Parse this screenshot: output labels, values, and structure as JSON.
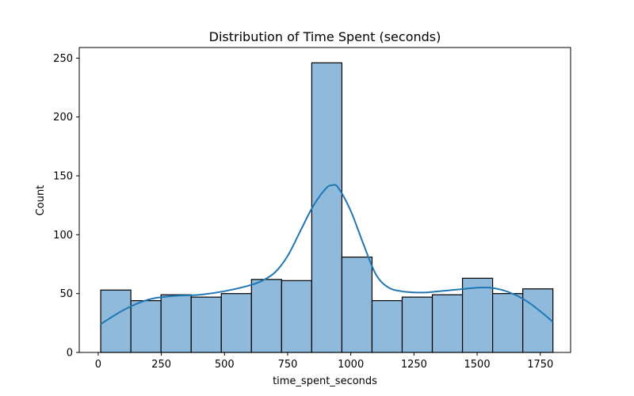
{
  "chart_data": {
    "type": "histogram",
    "title": "Distribution of Time Spent (seconds)",
    "xlabel": "time_spent_seconds",
    "ylabel": "Count",
    "xlim": [
      -75,
      1870
    ],
    "ylim": [
      0,
      259
    ],
    "x_ticks": [
      0,
      250,
      500,
      750,
      1000,
      1250,
      1500,
      1750
    ],
    "y_ticks": [
      0,
      50,
      100,
      150,
      200,
      250
    ],
    "bin_edges": [
      10,
      129.33,
      248.67,
      368,
      487.33,
      606.67,
      726,
      845.33,
      964.67,
      1084,
      1203.33,
      1322.67,
      1442,
      1561.33,
      1680.67,
      1800
    ],
    "counts": [
      53,
      44,
      49,
      47,
      50,
      62,
      61,
      246,
      81,
      44,
      47,
      49,
      63,
      50,
      54
    ],
    "kde": {
      "x": [
        10,
        100,
        200,
        300,
        400,
        500,
        600,
        650,
        700,
        750,
        800,
        850,
        900,
        925,
        950,
        1000,
        1050,
        1100,
        1150,
        1200,
        1250,
        1300,
        1350,
        1400,
        1450,
        1500,
        1550,
        1600,
        1650,
        1700,
        1750,
        1800
      ],
      "y": [
        24,
        36,
        45,
        48,
        49,
        52,
        57,
        61,
        68,
        82,
        103,
        124,
        139,
        142,
        140,
        120,
        92,
        66,
        55,
        52,
        51,
        51,
        52,
        53,
        54,
        55,
        55,
        53,
        49,
        43,
        35,
        26
      ]
    },
    "colors": {
      "bar_fill": "#8fbadb",
      "bar_edge": "#000000",
      "kde_line": "#1f77b4"
    }
  }
}
